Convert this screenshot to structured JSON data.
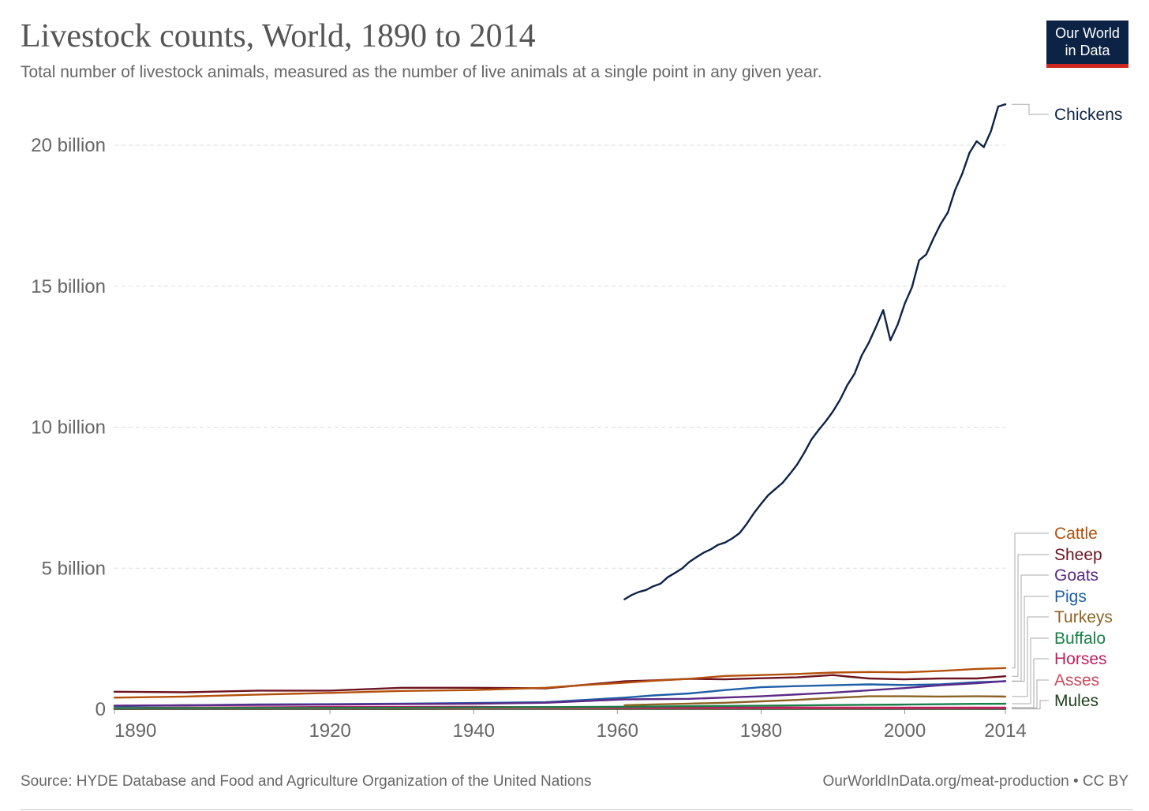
{
  "title": "Livestock counts, World, 1890 to 2014",
  "subtitle": "Total number of livestock animals, measured as the number of live animals at a single point in any given year.",
  "logo": {
    "line1": "Our World",
    "line2": "in Data",
    "background": "#0d2346",
    "accent": "#ce261e"
  },
  "source": "Source: HYDE Database and Food and Agriculture Organization of the United Nations",
  "credit": "OurWorldInData.org/meat-production • CC BY",
  "chart_data": {
    "type": "line",
    "xlim": [
      1890,
      2014
    ],
    "ylim": [
      0,
      21000000000
    ],
    "grid": true,
    "legend": "right-end labels",
    "x_ticks": [
      {
        "value": 1890,
        "label": "1890"
      },
      {
        "value": 1920,
        "label": "1920"
      },
      {
        "value": 1940,
        "label": "1940"
      },
      {
        "value": 1960,
        "label": "1960"
      },
      {
        "value": 1980,
        "label": "1980"
      },
      {
        "value": 2000,
        "label": "2000"
      },
      {
        "value": 2014,
        "label": "2014"
      }
    ],
    "y_ticks": [
      {
        "value": 0,
        "label": "0"
      },
      {
        "value": 5000000000,
        "label": "5 billion"
      },
      {
        "value": 10000000000,
        "label": "10 billion"
      },
      {
        "value": 15000000000,
        "label": "15 billion"
      },
      {
        "value": 20000000000,
        "label": "20 billion"
      }
    ],
    "series": [
      {
        "name": "Chickens",
        "color": "#0d2346",
        "x": [
          1961,
          1962,
          1963,
          1964,
          1965,
          1966,
          1967,
          1968,
          1969,
          1970,
          1971,
          1972,
          1973,
          1974,
          1975,
          1976,
          1977,
          1978,
          1979,
          1980,
          1981,
          1982,
          1983,
          1984,
          1985,
          1986,
          1987,
          1988,
          1989,
          1990,
          1991,
          1992,
          1993,
          1994,
          1995,
          1996,
          1997,
          1998,
          1999,
          2000,
          2001,
          2002,
          2003,
          2004,
          2005,
          2006,
          2007,
          2008,
          2009,
          2010,
          2011,
          2012,
          2013,
          2014
        ],
        "y": [
          3900000000,
          4050000000,
          4160000000,
          4230000000,
          4360000000,
          4450000000,
          4680000000,
          4830000000,
          4990000000,
          5220000000,
          5390000000,
          5550000000,
          5670000000,
          5830000000,
          5910000000,
          6060000000,
          6240000000,
          6570000000,
          6950000000,
          7280000000,
          7590000000,
          7810000000,
          8030000000,
          8340000000,
          8670000000,
          9090000000,
          9560000000,
          9900000000,
          10210000000,
          10560000000,
          10980000000,
          11490000000,
          11890000000,
          12540000000,
          13000000000,
          13560000000,
          14150000000,
          13080000000,
          13630000000,
          14380000000,
          14960000000,
          15920000000,
          16130000000,
          16700000000,
          17210000000,
          17620000000,
          18410000000,
          18990000000,
          19730000000,
          20140000000,
          19930000000,
          20500000000,
          21370000000,
          21450000000
        ]
      },
      {
        "name": "Cattle",
        "color": "#b4500a",
        "x": [
          1890,
          1900,
          1910,
          1920,
          1930,
          1940,
          1950,
          1955,
          1961,
          1965,
          1970,
          1975,
          1980,
          1985,
          1990,
          1995,
          2000,
          2005,
          2010,
          2014
        ],
        "y": [
          410000000,
          450000000,
          520000000,
          580000000,
          650000000,
          680000000,
          760000000,
          850000000,
          940000000,
          1010000000,
          1080000000,
          1180000000,
          1210000000,
          1250000000,
          1300000000,
          1320000000,
          1310000000,
          1360000000,
          1430000000,
          1460000000
        ]
      },
      {
        "name": "Sheep",
        "color": "#6e1420",
        "x": [
          1890,
          1900,
          1910,
          1920,
          1930,
          1940,
          1950,
          1961,
          1965,
          1970,
          1975,
          1980,
          1985,
          1990,
          1992,
          1995,
          2000,
          2005,
          2010,
          2014
        ],
        "y": [
          620000000,
          600000000,
          660000000,
          660000000,
          760000000,
          760000000,
          740000000,
          990000000,
          1020000000,
          1080000000,
          1060000000,
          1100000000,
          1130000000,
          1210000000,
          1160000000,
          1090000000,
          1060000000,
          1090000000,
          1090000000,
          1170000000
        ]
      },
      {
        "name": "Goats",
        "color": "#5b2a86",
        "x": [
          1890,
          1900,
          1910,
          1920,
          1930,
          1940,
          1950,
          1961,
          1970,
          1980,
          1990,
          2000,
          2005,
          2010,
          2014
        ],
        "y": [
          130000000,
          140000000,
          155000000,
          165000000,
          185000000,
          195000000,
          230000000,
          350000000,
          370000000,
          460000000,
          590000000,
          750000000,
          850000000,
          920000000,
          1000000000
        ]
      },
      {
        "name": "Pigs",
        "color": "#1f5fa6",
        "x": [
          1890,
          1900,
          1910,
          1920,
          1930,
          1940,
          1950,
          1961,
          1965,
          1970,
          1975,
          1980,
          1985,
          1990,
          1995,
          2000,
          2005,
          2010,
          2014
        ],
        "y": [
          110000000,
          140000000,
          170000000,
          180000000,
          200000000,
          220000000,
          250000000,
          410000000,
          490000000,
          560000000,
          680000000,
          780000000,
          820000000,
          850000000,
          880000000,
          860000000,
          880000000,
          960000000,
          990000000
        ]
      },
      {
        "name": "Turkeys",
        "color": "#8c6223",
        "x": [
          1961,
          1965,
          1970,
          1975,
          1980,
          1985,
          1990,
          1995,
          2000,
          2005,
          2010,
          2014
        ],
        "y": [
          140000000,
          170000000,
          200000000,
          230000000,
          280000000,
          330000000,
          400000000,
          460000000,
          460000000,
          450000000,
          460000000,
          450000000
        ]
      },
      {
        "name": "Buffalo",
        "color": "#178047",
        "x": [
          1890,
          1930,
          1961,
          1970,
          1980,
          1990,
          2000,
          2010,
          2014
        ],
        "y": [
          40000000,
          50000000,
          90000000,
          105000000,
          122000000,
          148000000,
          165000000,
          190000000,
          195000000
        ]
      },
      {
        "name": "Horses",
        "color": "#c01f5f",
        "x": [
          1890,
          1920,
          1940,
          1961,
          1980,
          2000,
          2014
        ],
        "y": [
          45000000,
          80000000,
          85000000,
          62000000,
          61000000,
          57000000,
          59000000
        ]
      },
      {
        "name": "Asses",
        "color": "#c94a5e",
        "x": [
          1890,
          1940,
          1961,
          1980,
          2000,
          2014
        ],
        "y": [
          25000000,
          32000000,
          38000000,
          40000000,
          42000000,
          44000000
        ]
      },
      {
        "name": "Mules",
        "color": "#20401f",
        "x": [
          1890,
          1940,
          1961,
          1980,
          2000,
          2014
        ],
        "y": [
          8000000,
          10000000,
          12000000,
          13000000,
          13000000,
          10000000
        ]
      }
    ]
  }
}
